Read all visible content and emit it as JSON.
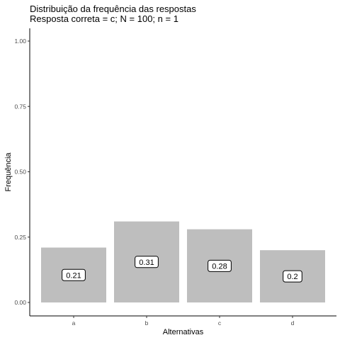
{
  "chart_data": {
    "type": "bar",
    "title": "Distribuição da frequência das respostas",
    "subtitle": "Resposta correta = c; N = 100; n = 1",
    "xlabel": "Alternativas",
    "ylabel": "Frequência",
    "categories": [
      "a",
      "b",
      "c",
      "d"
    ],
    "values": [
      0.21,
      0.31,
      0.28,
      0.2
    ],
    "data_labels": [
      "0.21",
      "0.31",
      "0.28",
      "0.2"
    ],
    "yticks": [
      0.0,
      0.25,
      0.5,
      0.75,
      1.0
    ],
    "ytick_labels": [
      "0.00",
      "0.25",
      "0.50",
      "0.75",
      "1.00"
    ],
    "ylim": [
      0,
      1
    ],
    "grid": false,
    "bar_color": "#bebebe"
  }
}
